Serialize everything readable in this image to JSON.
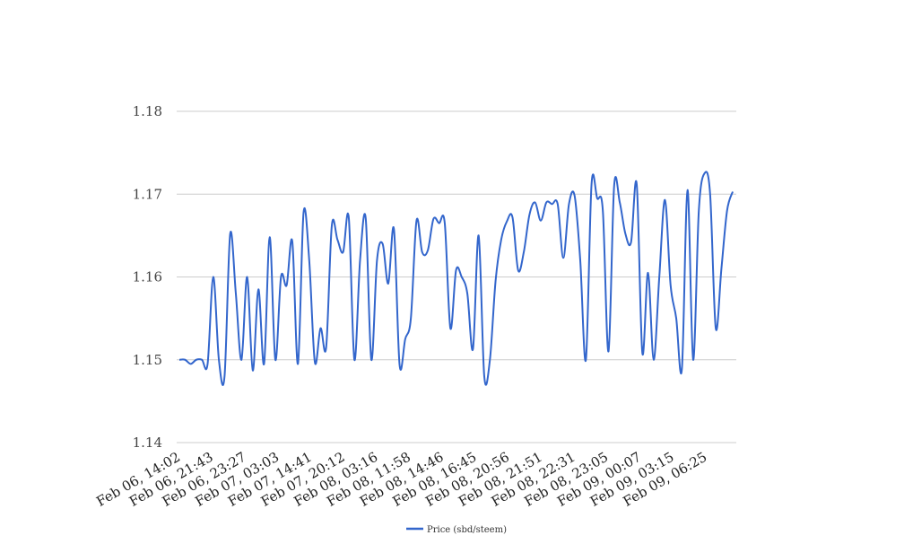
{
  "chart_data": {
    "type": "line",
    "xlabel": "",
    "ylabel": "",
    "ylim": [
      1.14,
      1.18
    ],
    "y_ticks": [
      "1.14",
      "1.15",
      "1.16",
      "1.17",
      "1.18"
    ],
    "x_tick_labels": [
      "Feb 06, 14:02",
      "Feb 06, 21:43",
      "Feb 06, 23:27",
      "Feb 07, 03:03",
      "Feb 07, 14:41",
      "Feb 07, 20:12",
      "Feb 08, 03:16",
      "Feb 08, 11:58",
      "Feb 08, 14:46",
      "Feb 08, 16:45",
      "Feb 08, 20:56",
      "Feb 08, 21:51",
      "Feb 08, 22:31",
      "Feb 08, 23:05",
      "Feb 09, 00:07",
      "Feb 09, 03:15",
      "Feb 09, 06:25"
    ],
    "grid": true,
    "legend_position": "bottom-center",
    "series": [
      {
        "name": "Price (sbd/steem)",
        "color": "#3366cc",
        "values": [
          1.15,
          1.15,
          1.1495,
          1.15,
          1.15,
          1.1495,
          1.16,
          1.15,
          1.148,
          1.1652,
          1.158,
          1.15,
          1.16,
          1.1487,
          1.1585,
          1.1495,
          1.1648,
          1.15,
          1.16,
          1.159,
          1.1643,
          1.1495,
          1.1678,
          1.162,
          1.1497,
          1.1538,
          1.1515,
          1.1662,
          1.1645,
          1.163,
          1.1672,
          1.15,
          1.162,
          1.1671,
          1.15,
          1.162,
          1.164,
          1.1592,
          1.1658,
          1.1494,
          1.1525,
          1.155,
          1.1668,
          1.163,
          1.1632,
          1.167,
          1.1665,
          1.1665,
          1.1538,
          1.1608,
          1.16,
          1.158,
          1.1513,
          1.165,
          1.148,
          1.15,
          1.1595,
          1.1645,
          1.1667,
          1.1672,
          1.1608,
          1.163,
          1.1675,
          1.169,
          1.1668,
          1.169,
          1.1688,
          1.1688,
          1.1623,
          1.1688,
          1.1698,
          1.162,
          1.15,
          1.1712,
          1.1695,
          1.168,
          1.151,
          1.171,
          1.169,
          1.1652,
          1.1642,
          1.1712,
          1.1508,
          1.1605,
          1.15,
          1.16,
          1.1693,
          1.159,
          1.155,
          1.1489,
          1.1705,
          1.15,
          1.168,
          1.1725,
          1.17,
          1.1538,
          1.161,
          1.168,
          1.1703
        ]
      }
    ]
  }
}
